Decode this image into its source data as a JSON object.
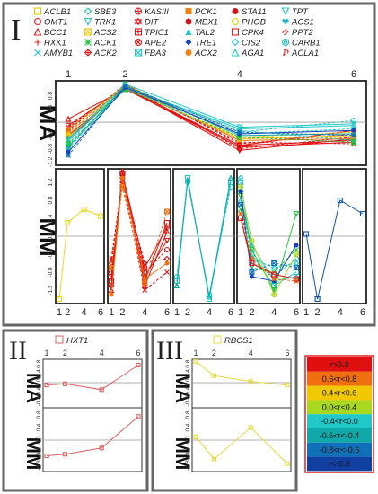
{
  "panel_I": {
    "label": "I",
    "row_labels": [
      "MA",
      "MM"
    ],
    "legend": [
      {
        "name": "ACLB1",
        "color": "#e8c800",
        "marker": "square"
      },
      {
        "name": "SBE3",
        "color": "#20b8b8",
        "marker": "diamond"
      },
      {
        "name": "KASIII",
        "color": "#e02020",
        "marker": "circleplus"
      },
      {
        "name": "PCK1",
        "color": "#f08010",
        "marker": "square-fill"
      },
      {
        "name": "STA11",
        "color": "#d01818",
        "marker": "dot"
      },
      {
        "name": "TPT",
        "color": "#20c8c8",
        "marker": "tri-down"
      },
      {
        "name": "OMT1",
        "color": "#e02020",
        "marker": "circle"
      },
      {
        "name": "TRK1",
        "color": "#20c8c8",
        "marker": "tri-down"
      },
      {
        "name": "DIT",
        "color": "#e02020",
        "marker": "star"
      },
      {
        "name": "MEX1",
        "color": "#d01818",
        "marker": "dot"
      },
      {
        "name": "PHOB",
        "color": "#e8c800",
        "marker": "circle"
      },
      {
        "name": "ACS1",
        "color": "#20b8c0",
        "marker": "heart"
      },
      {
        "name": "BCC1",
        "color": "#e02020",
        "marker": "tri-up"
      },
      {
        "name": "ACS2",
        "color": "#e8c800",
        "marker": "boxx"
      },
      {
        "name": "TPIC1",
        "color": "#e02020",
        "marker": "boxplus"
      },
      {
        "name": "TAL2",
        "color": "#20c8c8",
        "marker": "tri-up-fill"
      },
      {
        "name": "CPK4",
        "color": "#e02020",
        "marker": "square"
      },
      {
        "name": "PPT2",
        "color": "#e02020",
        "marker": "slash"
      },
      {
        "name": "HXK1",
        "color": "#e02020",
        "marker": "plus"
      },
      {
        "name": "ACK1",
        "color": "#20c040",
        "marker": "asterisk"
      },
      {
        "name": "APE2",
        "color": "#e02020",
        "marker": "circlex"
      },
      {
        "name": "TRE1",
        "color": "#1840c0",
        "marker": "diamond-fill"
      },
      {
        "name": "CIS2",
        "color": "#20c8c8",
        "marker": "diamond"
      },
      {
        "name": "CARB1",
        "color": "#20b8c0",
        "marker": "circleo"
      },
      {
        "name": "AMYB1",
        "color": "#20c8c8",
        "marker": "x"
      },
      {
        "name": "ACK2",
        "color": "#e02020",
        "marker": "diamondplus"
      },
      {
        "name": "FBA3",
        "color": "#20c8c8",
        "marker": "boxx"
      },
      {
        "name": "ACX2",
        "color": "#f08010",
        "marker": "dot"
      },
      {
        "name": "AGA1",
        "color": "#20c8c8",
        "marker": "tri-up"
      },
      {
        "name": "ACLA1",
        "color": "#e02020",
        "marker": "music"
      }
    ]
  },
  "panel_II": {
    "label": "II",
    "gene": "HXT1",
    "color": "#e06060",
    "row_labels": [
      "MA",
      "MM"
    ]
  },
  "panel_III": {
    "label": "III",
    "gene": "RBCS1",
    "color": "#e8d840",
    "row_labels": [
      "MA",
      "MM"
    ]
  },
  "color_scale": [
    {
      "label": "r>0.8",
      "color": "#e01010"
    },
    {
      "label": "0.6<r<0.8",
      "color": "#f07010"
    },
    {
      "label": "0.4<r<0.6",
      "color": "#f0c800"
    },
    {
      "label": "0.0<r<0.4",
      "color": "#a8d820"
    },
    {
      "label": "-0.4<r<0.0",
      "color": "#20c8c8"
    },
    {
      "label": "-0.6<r<-0.4",
      "color": "#10a8a8"
    },
    {
      "label": "-0.8<r<-0.6",
      "color": "#1070b8"
    },
    {
      "label": "r<-0.8",
      "color": "#1040a0"
    }
  ],
  "chart_data": [
    {
      "type": "line",
      "panel": "I-MA",
      "x": [
        1,
        2,
        4,
        6
      ],
      "x_ticks": [
        "1",
        "2",
        "4",
        "6"
      ],
      "y_ticks": [
        "0.8",
        "0.4",
        "-0.4",
        "-0.8",
        "-1.2"
      ],
      "ylim": [
        -1.3,
        1.25
      ],
      "series": [
        {
          "color": "#e01010",
          "values": [
            -0.1,
            1.05,
            -0.7,
            -0.55
          ]
        },
        {
          "color": "#e01010",
          "values": [
            -0.35,
            1.1,
            -0.8,
            -0.45
          ]
        },
        {
          "color": "#e01010",
          "values": [
            0.1,
            1.0,
            -0.75,
            -0.6
          ]
        },
        {
          "color": "#e01010",
          "values": [
            -0.25,
            1.15,
            -0.65,
            -0.35
          ]
        },
        {
          "color": "#e01010",
          "values": [
            -0.5,
            1.05,
            -0.85,
            -0.5
          ]
        },
        {
          "color": "#e01010",
          "values": [
            -0.15,
            1.1,
            -0.6,
            -0.65
          ]
        },
        {
          "color": "#e01010",
          "values": [
            -0.4,
            1.0,
            -0.7,
            -0.25
          ]
        },
        {
          "color": "#f07010",
          "values": [
            -0.3,
            1.05,
            -0.5,
            -0.45
          ]
        },
        {
          "color": "#f07010",
          "values": [
            -0.2,
            1.1,
            -0.55,
            -0.5
          ]
        },
        {
          "color": "#f0c800",
          "values": [
            -0.35,
            1.15,
            -0.45,
            -0.3
          ]
        },
        {
          "color": "#f0c800",
          "values": [
            -0.45,
            1.05,
            -0.5,
            -0.4
          ]
        },
        {
          "color": "#20c8c8",
          "values": [
            -0.6,
            1.1,
            -0.3,
            0.05
          ]
        },
        {
          "color": "#20c8c8",
          "values": [
            -0.55,
            1.05,
            -0.2,
            -0.1
          ]
        },
        {
          "color": "#20c8c8",
          "values": [
            -0.7,
            1.0,
            -0.35,
            -0.2
          ]
        },
        {
          "color": "#20c8c8",
          "values": [
            -0.5,
            1.15,
            -0.15,
            -0.05
          ]
        },
        {
          "color": "#20c8c8",
          "values": [
            -0.8,
            1.05,
            -0.25,
            -0.55
          ]
        },
        {
          "color": "#10a8a8",
          "values": [
            -0.75,
            1.1,
            -0.4,
            -0.35
          ]
        },
        {
          "color": "#20c040",
          "values": [
            -0.65,
            1.0,
            -0.45,
            -0.6
          ]
        },
        {
          "color": "#1840c0",
          "values": [
            -0.9,
            1.05,
            -0.35,
            -0.25
          ]
        },
        {
          "color": "#1070b8",
          "values": [
            -1.0,
            1.1,
            -0.3,
            -0.4
          ]
        }
      ]
    },
    {
      "type": "line",
      "panel": "I-MM-1",
      "x": [
        1,
        2,
        4,
        6
      ],
      "x_ticks": [
        "1",
        "2",
        "4",
        "6"
      ],
      "y_ticks": [
        "1.2",
        "0.8",
        "0.4",
        "0.0",
        "-0.4",
        "-0.8",
        "-1.2"
      ],
      "ylim": [
        -1.5,
        1.5
      ],
      "series": [
        {
          "color": "#f0d820",
          "values": [
            -1.4,
            0.3,
            0.6,
            0.45
          ]
        }
      ]
    },
    {
      "type": "line",
      "panel": "I-MM-2",
      "x": [
        1,
        2,
        4,
        6
      ],
      "x_ticks": [
        "1",
        "2",
        "4",
        "6"
      ],
      "ylim": [
        -1.5,
        1.5
      ],
      "series": [
        {
          "color": "#e01010",
          "values": [
            -1.0,
            1.4,
            -1.0,
            0.3
          ]
        },
        {
          "color": "#e01010",
          "values": [
            -0.8,
            1.3,
            -0.8,
            -0.3
          ]
        },
        {
          "color": "#e01010",
          "values": [
            -1.2,
            1.45,
            -1.1,
            0.1
          ]
        },
        {
          "color": "#e01010",
          "values": [
            -0.6,
            1.2,
            -0.6,
            -0.5
          ]
        },
        {
          "color": "#e01010",
          "values": [
            -0.9,
            1.35,
            -0.9,
            -0.1
          ]
        },
        {
          "color": "#e01010",
          "values": [
            -0.5,
            1.25,
            -1.2,
            -0.8
          ]
        },
        {
          "color": "#e01010",
          "values": [
            -1.1,
            1.4,
            -0.7,
            0.2
          ]
        },
        {
          "color": "#f07010",
          "values": [
            -0.7,
            1.1,
            -1.05,
            0.55
          ]
        },
        {
          "color": "#f07010",
          "values": [
            -1.3,
            1.3,
            -0.95,
            -0.6
          ]
        }
      ]
    },
    {
      "type": "line",
      "panel": "I-MM-3",
      "x": [
        1,
        2,
        4,
        6
      ],
      "x_ticks": [
        "1",
        "2",
        "4",
        "6"
      ],
      "ylim": [
        -1.5,
        1.5
      ],
      "series": [
        {
          "color": "#20c8c8",
          "values": [
            -1.0,
            1.3,
            -1.4,
            1.2
          ]
        },
        {
          "color": "#20c8c8",
          "values": [
            -0.9,
            1.2,
            -1.3,
            1.1
          ]
        },
        {
          "color": "#10a8a8",
          "values": [
            -1.1,
            1.25,
            -1.35,
            1.3
          ]
        }
      ]
    },
    {
      "type": "line",
      "panel": "I-MM-4",
      "x": [
        1,
        2,
        4,
        6
      ],
      "x_ticks": [
        "1",
        "2",
        "4",
        "6"
      ],
      "ylim": [
        -1.5,
        1.5
      ],
      "series": [
        {
          "color": "#20c8c8",
          "values": [
            1.2,
            -0.4,
            -1.1,
            -0.8
          ]
        },
        {
          "color": "#20c8c8",
          "values": [
            1.0,
            -0.6,
            -0.9,
            -0.5
          ]
        },
        {
          "color": "#20c8c8",
          "values": [
            0.8,
            -0.2,
            -1.0,
            -0.9
          ]
        },
        {
          "color": "#20c8c8",
          "values": [
            1.3,
            -0.5,
            -0.7,
            -0.6
          ]
        },
        {
          "color": "#20c040",
          "values": [
            0.9,
            -0.3,
            -1.2,
            0.5
          ]
        },
        {
          "color": "#20c040",
          "values": [
            0.6,
            -0.7,
            -0.8,
            -0.3
          ]
        },
        {
          "color": "#a8d820",
          "values": [
            1.1,
            -0.1,
            -1.3,
            -0.4
          ]
        },
        {
          "color": "#1070b8",
          "values": [
            0.7,
            -0.8,
            -0.6,
            -0.7
          ]
        },
        {
          "color": "#1840c0",
          "values": [
            1.0,
            -0.9,
            -1.0,
            -0.2
          ]
        },
        {
          "color": "#f07010",
          "values": [
            0.5,
            -0.5,
            -0.95,
            -1.0
          ]
        },
        {
          "color": "#e01010",
          "values": [
            0.4,
            -0.6,
            -0.85,
            -0.95
          ]
        }
      ]
    },
    {
      "type": "line",
      "panel": "I-MM-5",
      "x": [
        1,
        2,
        4,
        6
      ],
      "x_ticks": [
        "1",
        "2",
        "4",
        "6"
      ],
      "ylim": [
        -1.5,
        1.5
      ],
      "series": [
        {
          "color": "#1050a0",
          "values": [
            0.05,
            -1.4,
            0.8,
            0.5
          ]
        }
      ]
    },
    {
      "type": "line",
      "panel": "II-MA",
      "x": [
        1,
        2,
        4,
        6
      ],
      "x_ticks": [
        "1",
        "2",
        "4",
        "6"
      ],
      "y_ticks": [
        "0.8",
        "0.4",
        "0.0",
        "-0.4",
        "-0.8"
      ],
      "ylim": [
        -1.0,
        1.0
      ],
      "series": [
        {
          "name": "HXT1",
          "color": "#e06060",
          "values": [
            -0.1,
            -0.05,
            -0.3,
            0.75
          ]
        }
      ]
    },
    {
      "type": "line",
      "panel": "II-MM",
      "x": [
        1,
        2,
        4,
        6
      ],
      "x_ticks": [
        "1",
        "2",
        "4",
        "6"
      ],
      "y_ticks": [
        "0.8",
        "0.4",
        "0.0",
        "-0.4",
        "-0.8"
      ],
      "ylim": [
        -1.0,
        1.0
      ],
      "series": [
        {
          "name": "HXT1",
          "color": "#e06060",
          "values": [
            -0.5,
            -0.45,
            -0.25,
            0.75
          ]
        }
      ]
    },
    {
      "type": "line",
      "panel": "III-MA",
      "x": [
        1,
        2,
        4,
        6
      ],
      "x_ticks": [
        "1",
        "2",
        "4",
        "6"
      ],
      "y_ticks": [
        "0.8",
        "0.4",
        "0.0",
        "-0.4",
        "-0.8"
      ],
      "ylim": [
        -1.0,
        1.0
      ],
      "series": [
        {
          "name": "RBCS1",
          "color": "#e8d840",
          "values": [
            0.9,
            0.3,
            0.05,
            -0.1
          ]
        }
      ]
    },
    {
      "type": "line",
      "panel": "III-MM",
      "x": [
        1,
        2,
        4,
        6
      ],
      "x_ticks": [
        "1",
        "2",
        "4",
        "6"
      ],
      "y_ticks": [
        "0.8",
        "0.4",
        "0.0",
        "-0.4",
        "-0.8"
      ],
      "ylim": [
        -1.0,
        1.0
      ],
      "series": [
        {
          "name": "RBCS1",
          "color": "#e8d840",
          "values": [
            0.1,
            -0.6,
            0.4,
            -0.75
          ]
        }
      ]
    }
  ]
}
